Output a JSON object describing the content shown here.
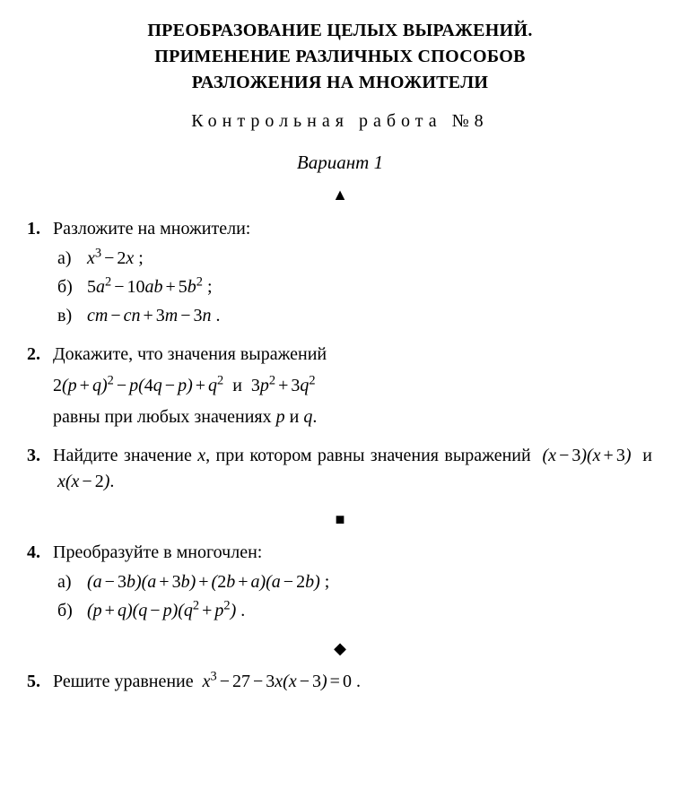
{
  "title_line1": "ПРЕОБРАЗОВАНИЕ ЦЕЛЫХ ВЫРАЖЕНИЙ.",
  "title_line2": "ПРИМЕНЕНИЕ РАЗЛИЧНЫХ СПОСОБОВ",
  "title_line3": "РАЗЛОЖЕНИЯ НА МНОЖИТЕЛИ",
  "subtitle": "Контрольная работа №8",
  "variant": "Вариант 1",
  "marker_triangle": "▲",
  "marker_square": "■",
  "marker_diamond": "◆",
  "p1": {
    "num": "1.",
    "text": "Разложите на множители:",
    "a_label": "а)",
    "b_label": "б)",
    "c_label": "в)",
    "a_expr_html": "<span class='math'>x<span class='sup'>3</span><span class='op'>−</span><span class='num'>2</span>x</span> ;",
    "b_expr_html": "<span class='math'><span class='num'>5</span>a<span class='sup'>2</span><span class='op'>−</span><span class='num'>10</span>ab<span class='op'>+</span><span class='num'>5</span>b<span class='sup'>2</span></span> ;",
    "c_expr_html": "<span class='math'>cm<span class='op'>−</span>cn<span class='op'>+</span><span class='num'>3</span>m<span class='op'>−</span><span class='num'>3</span>n</span> ."
  },
  "p2": {
    "num": "2.",
    "text": "Докажите, что значения выражений",
    "expr_html": "<span class='math'><span class='num'>2</span>(p<span class='op'>+</span>q)<span class='sup'>2</span><span class='op'>−</span>p(<span class='num'>4</span>q<span class='op'>−</span>p)<span class='op'>+</span>q<span class='sup'>2</span></span>&nbsp; и &nbsp;<span class='math'><span class='num'>3</span>p<span class='sup'>2</span><span class='op'>+</span><span class='num'>3</span>q<span class='sup'>2</span></span>",
    "tail": "равны при любых значениях <span class='math'>p</span> и <span class='math'>q</span>."
  },
  "p3": {
    "num": "3.",
    "html": "Найдите значение <span class='math'>x</span>, при котором равны значения выражений &nbsp;<span class='math'>(x<span class='op'>−</span><span class='num'>3</span>)(x<span class='op'>+</span><span class='num'>3</span>)</span>&nbsp; и &nbsp;<span class='math'>x(x<span class='op'>−</span><span class='num'>2</span>)</span>."
  },
  "p4": {
    "num": "4.",
    "text": "Преобразуйте в многочлен:",
    "a_label": "а)",
    "b_label": "б)",
    "a_expr_html": "<span class='math'>(a<span class='op'>−</span><span class='num'>3</span>b)(a<span class='op'>+</span><span class='num'>3</span>b)<span class='op'>+</span>(<span class='num'>2</span>b<span class='op'>+</span>a)(a<span class='op'>−</span><span class='num'>2</span>b)</span> ;",
    "b_expr_html": "<span class='math'>(p<span class='op'>+</span>q)(q<span class='op'>−</span>p)(q<span class='sup'>2</span><span class='op'>+</span>p<span class='sup'>2</span>)</span> ."
  },
  "p5": {
    "num": "5.",
    "html": "Решите уравнение &nbsp;<span class='math'>x<span class='sup'>3</span><span class='op'>−</span><span class='num'>27</span><span class='op'>−</span><span class='num'>3</span>x(x<span class='op'>−</span><span class='num'>3</span>)<span class='op'>=</span><span class='num'>0</span></span> ."
  }
}
